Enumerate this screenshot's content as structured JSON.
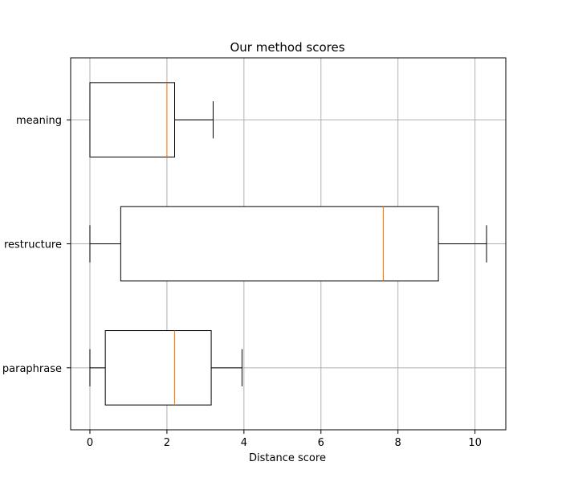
{
  "chart_data": {
    "type": "boxplot",
    "orientation": "horizontal",
    "title": "Our method scores",
    "xlabel": "Distance score",
    "ylabel": "",
    "xlim": [
      -0.5,
      10.8
    ],
    "xticks": [
      0,
      2,
      4,
      6,
      8,
      10
    ],
    "grid": true,
    "categories": [
      "paraphrase",
      "restructure",
      "meaning"
    ],
    "boxes": [
      {
        "label": "paraphrase",
        "whisker_low": 0.0,
        "q1": 0.4,
        "median": 2.2,
        "q3": 3.15,
        "whisker_high": 3.95
      },
      {
        "label": "restructure",
        "whisker_low": 0.0,
        "q1": 0.8,
        "median": 7.62,
        "q3": 9.05,
        "whisker_high": 10.3
      },
      {
        "label": "meaning",
        "whisker_low": 0.0,
        "q1": 0.0,
        "median": 2.0,
        "q3": 2.2,
        "whisker_high": 3.2
      }
    ],
    "colors": {
      "box": "#000000",
      "median": "#ff7f0e",
      "grid": "#b0b0b0"
    }
  }
}
